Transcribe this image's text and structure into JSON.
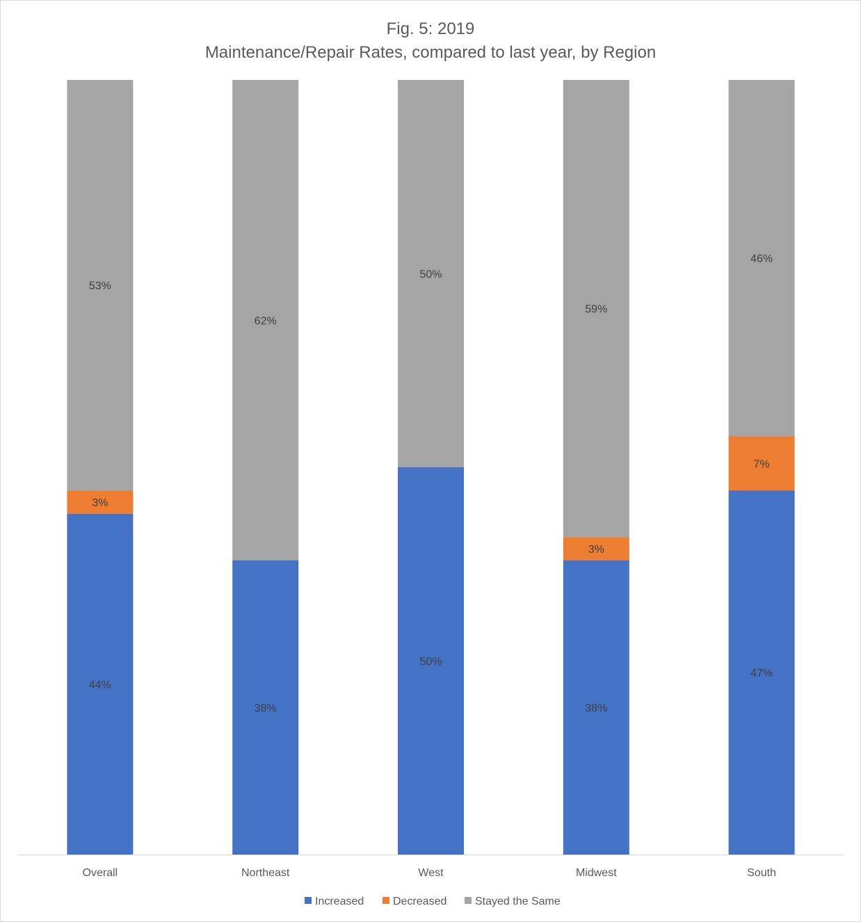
{
  "chart_data": {
    "type": "bar",
    "stacked": true,
    "title": "Fig. 5: 2019",
    "subtitle": "Maintenance/Repair Rates, compared to last year, by Region",
    "categories": [
      "Overall",
      "Northeast",
      "West",
      "Midwest",
      "South"
    ],
    "series": [
      {
        "name": "Increased",
        "color": "#4472C4",
        "values": [
          44,
          38,
          50,
          38,
          47
        ],
        "labels": [
          "44%",
          "38%",
          "50%",
          "38%",
          "47%"
        ]
      },
      {
        "name": "Decreased",
        "color": "#ED7D31",
        "values": [
          3,
          0,
          0,
          3,
          7
        ],
        "labels": [
          "3%",
          "",
          "",
          "3%",
          "7%"
        ]
      },
      {
        "name": "Stayed the Same",
        "color": "#A5A5A5",
        "values": [
          53,
          62,
          50,
          59,
          46
        ],
        "labels": [
          "53%",
          "62%",
          "50%",
          "59%",
          "46%"
        ]
      }
    ],
    "ylim": [
      0,
      100
    ],
    "grid": false,
    "legend_position": "bottom"
  }
}
